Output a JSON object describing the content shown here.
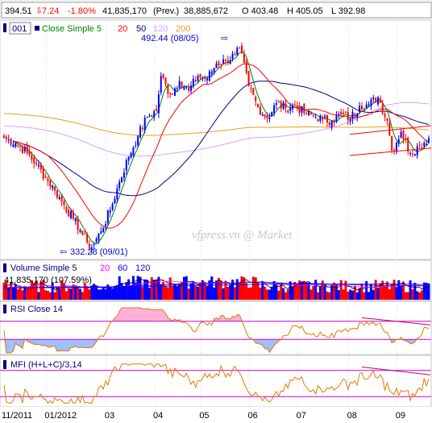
{
  "header": {
    "last": "394.51",
    "change": "7.24",
    "change_pct": "-1.80%",
    "volume": "41,835,170",
    "prev_label": "(Prev.)",
    "prev_volume": "38,885,672",
    "open": "O 403.48",
    "high": "H 405.05",
    "low": "L 392.98"
  },
  "colors": {
    "up": "#0000ff",
    "down": "#ff0000",
    "ma5": "#008000",
    "ma20": "#ff0000",
    "ma50": "#00008b",
    "ma120": "#d9a0ff",
    "ma200": "#e0a020",
    "rsi_line": "#e07b00",
    "guide": "#cc00cc"
  },
  "watermark": "vfpress.vn @ Market",
  "chart_data": [
    {
      "type": "candlestick",
      "panel": "price",
      "symbol_label": "001",
      "legend": [
        {
          "name": "Close Simple 5",
          "color": "#008000"
        },
        {
          "name": "20",
          "color": "#ff0000"
        },
        {
          "name": "50",
          "color": "#00008b"
        },
        {
          "name": "120",
          "color": "#d9a0ff"
        },
        {
          "name": "200",
          "color": "#e0a020"
        }
      ],
      "annotations": [
        {
          "text": "492.44 (08/05)",
          "value": 492.44,
          "date": "08/05"
        },
        {
          "text": "332.28 (09/01)",
          "value": 332.28,
          "date": "09/01"
        }
      ],
      "x_labels": [
        "11/2011",
        "01/2012",
        "03",
        "04",
        "05",
        "06",
        "07",
        "08",
        "09"
      ],
      "ylim": [
        325,
        500
      ],
      "path_points": [
        [
          0,
          420
        ],
        [
          5,
          416
        ],
        [
          10,
          408
        ],
        [
          14,
          399
        ],
        [
          18,
          388
        ],
        [
          22,
          378
        ],
        [
          26,
          366
        ],
        [
          30,
          355
        ],
        [
          33,
          346
        ],
        [
          36,
          336
        ],
        [
          38,
          332.28
        ],
        [
          42,
          345
        ],
        [
          46,
          362
        ],
        [
          50,
          385
        ],
        [
          54,
          405
        ],
        [
          58,
          422
        ],
        [
          62,
          437
        ],
        [
          66,
          442
        ],
        [
          68,
          470
        ],
        [
          72,
          455
        ],
        [
          76,
          466
        ],
        [
          80,
          458
        ],
        [
          84,
          470
        ],
        [
          88,
          468
        ],
        [
          92,
          480
        ],
        [
          96,
          482
        ],
        [
          100,
          487
        ],
        [
          102,
          492.44
        ],
        [
          106,
          462
        ],
        [
          110,
          445
        ],
        [
          114,
          436
        ],
        [
          118,
          448
        ],
        [
          122,
          444
        ],
        [
          126,
          447
        ],
        [
          130,
          440
        ],
        [
          134,
          438
        ],
        [
          138,
          435
        ],
        [
          142,
          434
        ],
        [
          146,
          439
        ],
        [
          150,
          436
        ],
        [
          154,
          446
        ],
        [
          158,
          447
        ],
        [
          162,
          453
        ],
        [
          166,
          434
        ],
        [
          168,
          410
        ],
        [
          172,
          425
        ],
        [
          176,
          408
        ],
        [
          180,
          414
        ],
        [
          184,
          420
        ]
      ],
      "trend_channel": [
        [
          162,
          423
        ],
        [
          184,
          430
        ],
        [
          162,
          406
        ],
        [
          184,
          412
        ]
      ],
      "ma_periods": [
        5,
        20,
        50,
        120,
        200
      ],
      "ma_seeds": {
        "120": 430,
        "200": 440
      }
    },
    {
      "type": "bar",
      "panel": "volume",
      "legend": [
        {
          "name": "Volume Simple 5",
          "color": "#000000"
        },
        {
          "name": "20",
          "color": "#ff0000"
        },
        {
          "name": "60",
          "color": "#0000ff"
        },
        {
          "name": "120",
          "color": "#0000ff"
        }
      ],
      "readout": "41,835,170 (107.59%)",
      "ylim": [
        0,
        120000000
      ]
    },
    {
      "type": "line",
      "panel": "rsi",
      "label": "RSI Close 14",
      "guides": [
        30,
        70
      ],
      "ylim": [
        0,
        100
      ]
    },
    {
      "type": "line",
      "panel": "mfi",
      "label": "MFI (H+L+C)/3,14",
      "guides": [
        20,
        80
      ],
      "ylim": [
        0,
        100
      ]
    }
  ]
}
